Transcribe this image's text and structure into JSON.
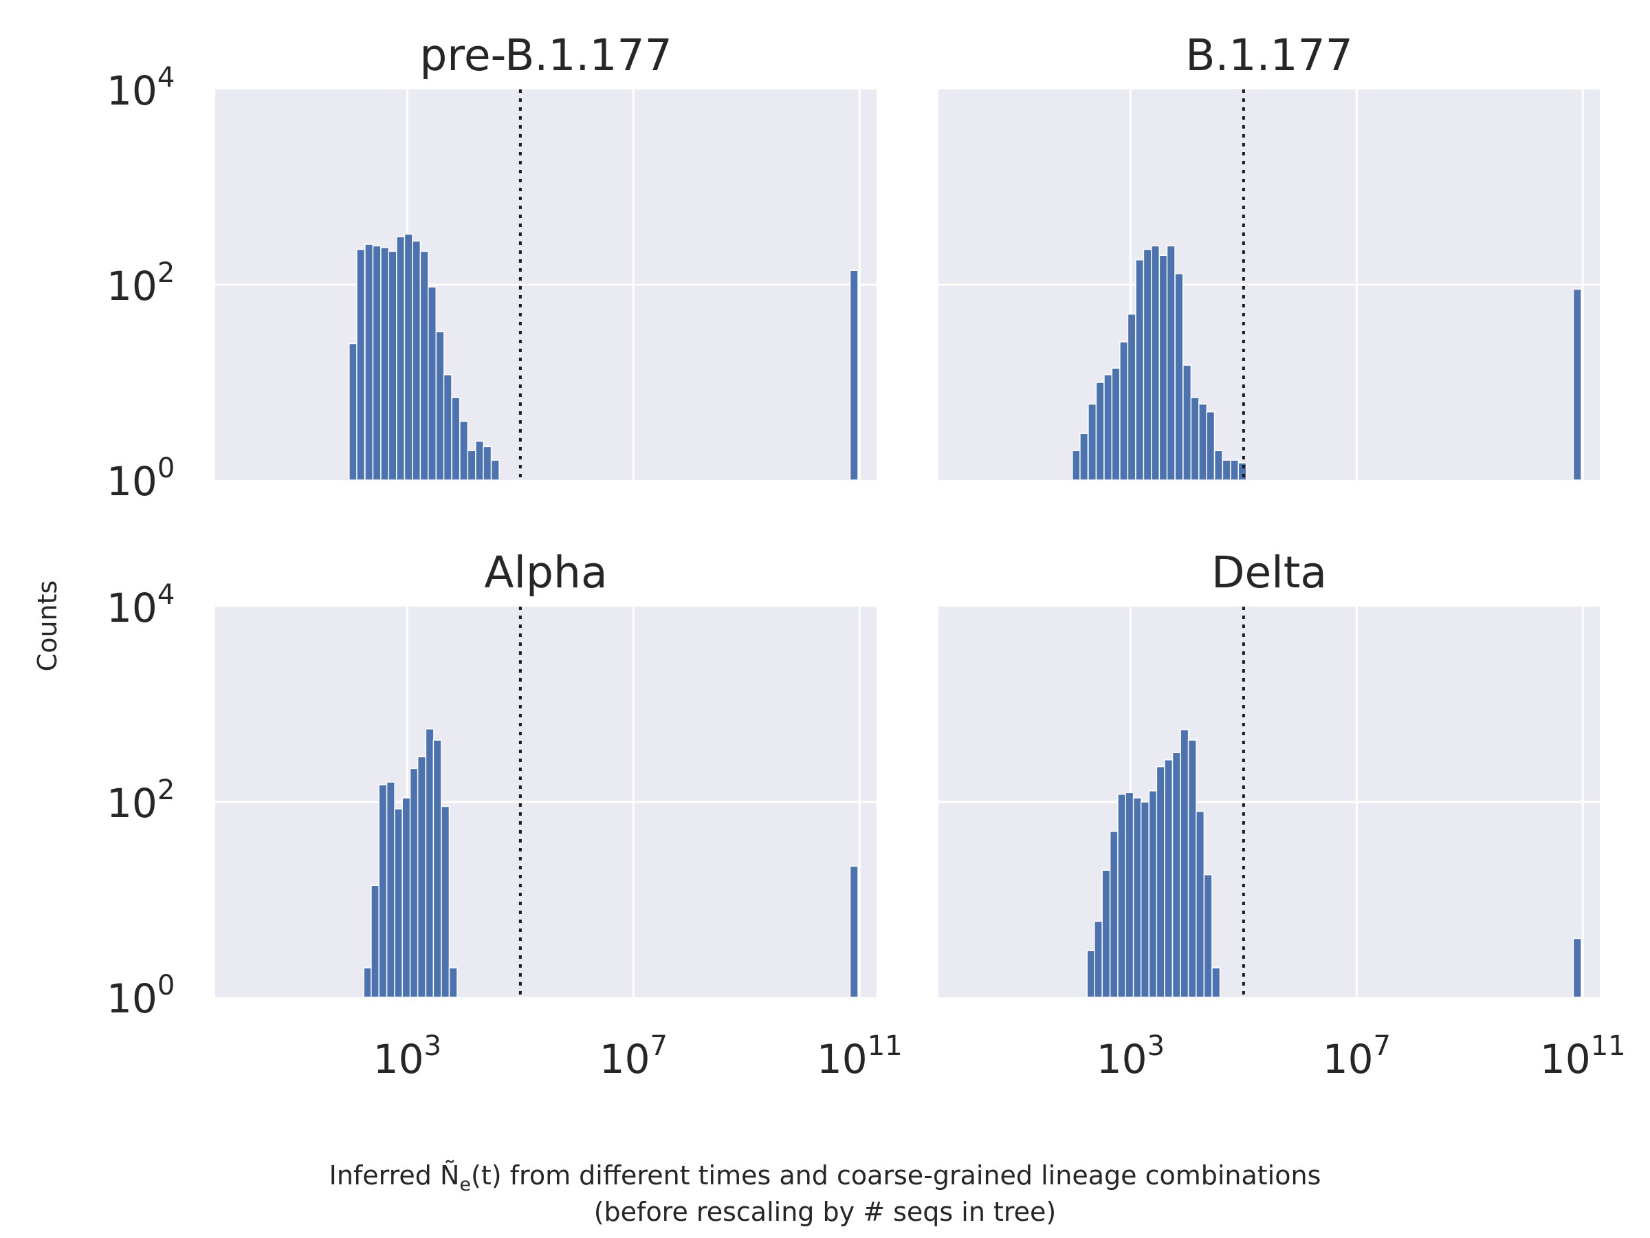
{
  "figure": {
    "ylabel": "Counts",
    "xlabel_line1": "Inferred Ñ",
    "xlabel_sub": "e",
    "xlabel_line1_rest": "(t) from different times and coarse-grained lineage combinations",
    "xlabel_line2": "(before rescaling by # seqs in tree)"
  },
  "chart_data": [
    {
      "type": "bar",
      "title": "pre-B.1.177",
      "xscale": "log",
      "yscale": "log",
      "xlim": [
        0.4,
        200000000000.0
      ],
      "ylim": [
        1,
        10000
      ],
      "xticks": [
        {
          "base": "10",
          "exp": "3",
          "value": 1000
        },
        {
          "base": "10",
          "exp": "7",
          "value": 10000000
        },
        {
          "base": "10",
          "exp": "11",
          "value": 100000000000
        }
      ],
      "yticks": [
        {
          "base": "10",
          "exp": "0",
          "value": 1
        },
        {
          "base": "10",
          "exp": "2",
          "value": 100
        },
        {
          "base": "10",
          "exp": "4",
          "value": 10000
        }
      ],
      "threshold_x": 100000,
      "bar_color": "#4c72b0",
      "bins": [
        {
          "x": 110,
          "count": 25
        },
        {
          "x": 150,
          "count": 230
        },
        {
          "x": 210,
          "count": 260
        },
        {
          "x": 290,
          "count": 250
        },
        {
          "x": 400,
          "count": 240
        },
        {
          "x": 550,
          "count": 220
        },
        {
          "x": 760,
          "count": 310
        },
        {
          "x": 1050,
          "count": 330
        },
        {
          "x": 1450,
          "count": 280
        },
        {
          "x": 2000,
          "count": 220
        },
        {
          "x": 2750,
          "count": 95
        },
        {
          "x": 3800,
          "count": 33
        },
        {
          "x": 5200,
          "count": 12
        },
        {
          "x": 7200,
          "count": 7
        },
        {
          "x": 10000,
          "count": 4
        },
        {
          "x": 13800,
          "count": 2
        },
        {
          "x": 19000,
          "count": 2.5
        },
        {
          "x": 26000,
          "count": 2.2
        },
        {
          "x": 36000,
          "count": 1.6
        },
        {
          "x": 80000000000,
          "count": 140
        }
      ]
    },
    {
      "type": "bar",
      "title": "B.1.177",
      "xscale": "log",
      "yscale": "log",
      "xlim": [
        0.4,
        200000000000.0
      ],
      "ylim": [
        1,
        10000
      ],
      "xticks": [
        {
          "base": "10",
          "exp": "3",
          "value": 1000
        },
        {
          "base": "10",
          "exp": "7",
          "value": 10000000
        },
        {
          "base": "10",
          "exp": "11",
          "value": 100000000000
        }
      ],
      "yticks": [
        {
          "base": "10",
          "exp": "0",
          "value": 1
        },
        {
          "base": "10",
          "exp": "2",
          "value": 100
        },
        {
          "base": "10",
          "exp": "4",
          "value": 10000
        }
      ],
      "threshold_x": 100000,
      "bar_color": "#4c72b0",
      "bins": [
        {
          "x": 110,
          "count": 2
        },
        {
          "x": 150,
          "count": 3
        },
        {
          "x": 210,
          "count": 6
        },
        {
          "x": 290,
          "count": 10
        },
        {
          "x": 400,
          "count": 12
        },
        {
          "x": 550,
          "count": 14
        },
        {
          "x": 760,
          "count": 26
        },
        {
          "x": 1050,
          "count": 50
        },
        {
          "x": 1450,
          "count": 180
        },
        {
          "x": 2000,
          "count": 230
        },
        {
          "x": 2750,
          "count": 250
        },
        {
          "x": 3800,
          "count": 200
        },
        {
          "x": 5200,
          "count": 250
        },
        {
          "x": 7200,
          "count": 130
        },
        {
          "x": 10000,
          "count": 15
        },
        {
          "x": 13800,
          "count": 7
        },
        {
          "x": 19000,
          "count": 6
        },
        {
          "x": 26000,
          "count": 5
        },
        {
          "x": 36000,
          "count": 2
        },
        {
          "x": 50000,
          "count": 1.6
        },
        {
          "x": 69000,
          "count": 1.6
        },
        {
          "x": 95000,
          "count": 1.5
        },
        {
          "x": 80000000000,
          "count": 90
        }
      ]
    },
    {
      "type": "bar",
      "title": "Alpha",
      "xscale": "log",
      "yscale": "log",
      "xlim": [
        0.4,
        200000000000.0
      ],
      "ylim": [
        1,
        10000
      ],
      "xticks": [
        {
          "base": "10",
          "exp": "3",
          "value": 1000
        },
        {
          "base": "10",
          "exp": "7",
          "value": 10000000
        },
        {
          "base": "10",
          "exp": "11",
          "value": 100000000000
        }
      ],
      "yticks": [
        {
          "base": "10",
          "exp": "0",
          "value": 1
        },
        {
          "base": "10",
          "exp": "2",
          "value": 100
        },
        {
          "base": "10",
          "exp": "4",
          "value": 10000
        }
      ],
      "threshold_x": 100000,
      "bar_color": "#4c72b0",
      "bins": [
        {
          "x": 200,
          "count": 2
        },
        {
          "x": 270,
          "count": 14
        },
        {
          "x": 370,
          "count": 150
        },
        {
          "x": 510,
          "count": 160
        },
        {
          "x": 700,
          "count": 85
        },
        {
          "x": 960,
          "count": 110
        },
        {
          "x": 1320,
          "count": 220
        },
        {
          "x": 1800,
          "count": 290
        },
        {
          "x": 2500,
          "count": 560
        },
        {
          "x": 3400,
          "count": 430
        },
        {
          "x": 4700,
          "count": 90
        },
        {
          "x": 6500,
          "count": 2
        },
        {
          "x": 80000000000,
          "count": 22
        }
      ]
    },
    {
      "type": "bar",
      "title": "Delta",
      "xscale": "log",
      "yscale": "log",
      "xlim": [
        0.4,
        200000000000.0
      ],
      "ylim": [
        1,
        10000
      ],
      "xticks": [
        {
          "base": "10",
          "exp": "3",
          "value": 1000
        },
        {
          "base": "10",
          "exp": "7",
          "value": 10000000
        },
        {
          "base": "10",
          "exp": "11",
          "value": 100000000000
        }
      ],
      "yticks": [
        {
          "base": "10",
          "exp": "0",
          "value": 1
        },
        {
          "base": "10",
          "exp": "2",
          "value": 100
        },
        {
          "base": "10",
          "exp": "4",
          "value": 10000
        }
      ],
      "threshold_x": 100000,
      "bar_color": "#4c72b0",
      "bins": [
        {
          "x": 200,
          "count": 3
        },
        {
          "x": 270,
          "count": 6
        },
        {
          "x": 370,
          "count": 20
        },
        {
          "x": 510,
          "count": 50
        },
        {
          "x": 700,
          "count": 120
        },
        {
          "x": 960,
          "count": 125
        },
        {
          "x": 1320,
          "count": 110
        },
        {
          "x": 1800,
          "count": 100
        },
        {
          "x": 2500,
          "count": 130
        },
        {
          "x": 3400,
          "count": 230
        },
        {
          "x": 4700,
          "count": 270
        },
        {
          "x": 6500,
          "count": 320
        },
        {
          "x": 9000,
          "count": 550
        },
        {
          "x": 12400,
          "count": 430
        },
        {
          "x": 17000,
          "count": 80
        },
        {
          "x": 23500,
          "count": 18
        },
        {
          "x": 32500,
          "count": 2
        },
        {
          "x": 80000000000,
          "count": 4
        }
      ]
    }
  ]
}
